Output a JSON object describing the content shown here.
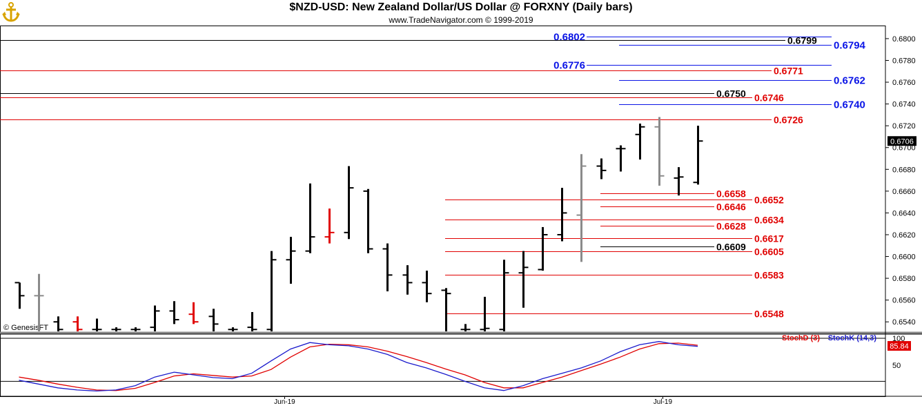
{
  "title": "$NZD-USD:  New Zealand Dollar/US Dollar @ FORXNY  (Daily bars)",
  "subtitle": "www.TradeNavigator.com © 1999-2019",
  "watermark": "© GenesisFT",
  "colors": {
    "black": "#000000",
    "red": "#e00000",
    "blue": "#0a14e6",
    "gray": "#8a8a8a",
    "stoch_d": "#e00000",
    "stoch_k": "#1a1acc"
  },
  "chart_data": {
    "type": "bar",
    "title": "$NZD-USD:  New Zealand Dollar/US Dollar @ FORXNY  (Daily bars)",
    "price_axis": {
      "ylim": [
        0.653,
        0.6812
      ],
      "ticks": [
        "0.6540",
        "0.6560",
        "0.6580",
        "0.6600",
        "0.6620",
        "0.6640",
        "0.6660",
        "0.6680",
        "0.6700",
        "0.6720",
        "0.6740",
        "0.6760",
        "0.6780",
        "0.6800"
      ]
    },
    "last_price": "0.6706",
    "x_labels": [
      {
        "label": "Jun-19",
        "index": 13.7
      },
      {
        "label": "Jul-19",
        "index": 33.2
      }
    ],
    "ohlc": [
      {
        "o": 0.6576,
        "h": 0.6576,
        "l": 0.6552,
        "c": 0.6564,
        "color": "black"
      },
      {
        "o": 0.6564,
        "h": 0.6584,
        "l": 0.6525,
        "c": 0.6564,
        "color": "gray"
      },
      {
        "o": 0.654,
        "h": 0.6545,
        "l": 0.6525,
        "c": 0.6533,
        "color": "black"
      },
      {
        "o": 0.654,
        "h": 0.6545,
        "l": 0.6525,
        "c": 0.6533,
        "color": "red"
      },
      {
        "o": 0.6533,
        "h": 0.6543,
        "l": 0.6525,
        "c": 0.6533,
        "color": "black"
      },
      {
        "o": 0.6533,
        "h": 0.6535,
        "l": 0.6525,
        "c": 0.6533,
        "color": "black"
      },
      {
        "o": 0.6533,
        "h": 0.6535,
        "l": 0.6525,
        "c": 0.6533,
        "color": "black"
      },
      {
        "o": 0.6535,
        "h": 0.6555,
        "l": 0.6525,
        "c": 0.655,
        "color": "black"
      },
      {
        "o": 0.655,
        "h": 0.6559,
        "l": 0.6538,
        "c": 0.6542,
        "color": "black"
      },
      {
        "o": 0.6547,
        "h": 0.6558,
        "l": 0.6538,
        "c": 0.654,
        "color": "red"
      },
      {
        "o": 0.6545,
        "h": 0.6552,
        "l": 0.6525,
        "c": 0.6538,
        "color": "black"
      },
      {
        "o": 0.6533,
        "h": 0.6535,
        "l": 0.6525,
        "c": 0.6533,
        "color": "black"
      },
      {
        "o": 0.6535,
        "h": 0.6549,
        "l": 0.6525,
        "c": 0.6533,
        "color": "black"
      },
      {
        "o": 0.6533,
        "h": 0.6605,
        "l": 0.6525,
        "c": 0.6597,
        "color": "black"
      },
      {
        "o": 0.6597,
        "h": 0.6618,
        "l": 0.6575,
        "c": 0.6605,
        "color": "black"
      },
      {
        "o": 0.6605,
        "h": 0.6667,
        "l": 0.6603,
        "c": 0.6618,
        "color": "black"
      },
      {
        "o": 0.6618,
        "h": 0.6644,
        "l": 0.6612,
        "c": 0.6622,
        "color": "red"
      },
      {
        "o": 0.6622,
        "h": 0.6683,
        "l": 0.6616,
        "c": 0.6663,
        "color": "black"
      },
      {
        "o": 0.666,
        "h": 0.6662,
        "l": 0.6603,
        "c": 0.6607,
        "color": "black"
      },
      {
        "o": 0.6607,
        "h": 0.6612,
        "l": 0.6568,
        "c": 0.6583,
        "color": "black"
      },
      {
        "o": 0.6583,
        "h": 0.6592,
        "l": 0.6565,
        "c": 0.6576,
        "color": "black"
      },
      {
        "o": 0.6576,
        "h": 0.6587,
        "l": 0.6558,
        "c": 0.6566,
        "color": "black"
      },
      {
        "o": 0.6569,
        "h": 0.6571,
        "l": 0.6525,
        "c": 0.6566,
        "color": "black"
      },
      {
        "o": 0.6533,
        "h": 0.6538,
        "l": 0.6525,
        "c": 0.6533,
        "color": "black"
      },
      {
        "o": 0.6533,
        "h": 0.6563,
        "l": 0.6525,
        "c": 0.6534,
        "color": "black"
      },
      {
        "o": 0.6533,
        "h": 0.6597,
        "l": 0.6525,
        "c": 0.6585,
        "color": "black"
      },
      {
        "o": 0.6585,
        "h": 0.6605,
        "l": 0.6553,
        "c": 0.659,
        "color": "black"
      },
      {
        "o": 0.6588,
        "h": 0.6627,
        "l": 0.6587,
        "c": 0.662,
        "color": "black"
      },
      {
        "o": 0.662,
        "h": 0.6663,
        "l": 0.6614,
        "c": 0.664,
        "color": "black"
      },
      {
        "o": 0.6638,
        "h": 0.6694,
        "l": 0.6595,
        "c": 0.6683,
        "color": "gray"
      },
      {
        "o": 0.6683,
        "h": 0.669,
        "l": 0.6671,
        "c": 0.6679,
        "color": "black"
      },
      {
        "o": 0.6699,
        "h": 0.6702,
        "l": 0.6678,
        "c": 0.6699,
        "color": "black"
      },
      {
        "o": 0.6712,
        "h": 0.6722,
        "l": 0.6689,
        "c": 0.6719,
        "color": "black"
      },
      {
        "o": 0.6719,
        "h": 0.6728,
        "l": 0.6665,
        "c": 0.6674,
        "color": "gray"
      },
      {
        "o": 0.6672,
        "h": 0.6682,
        "l": 0.6656,
        "c": 0.6673,
        "color": "black"
      },
      {
        "o": 0.6668,
        "h": 0.672,
        "l": 0.6666,
        "c": 0.6706,
        "color": "black"
      }
    ],
    "levels": [
      {
        "value": "0.6802",
        "price": 0.6802,
        "color": "blue",
        "side": "left",
        "from": 850,
        "to": 1205
      },
      {
        "value": "0.6799",
        "price": 0.6799,
        "color": "black",
        "side": "right",
        "from": 0,
        "to": 1138
      },
      {
        "value": "0.6794",
        "price": 0.6794,
        "color": "blue",
        "side": "right",
        "from": 897,
        "to": 1205
      },
      {
        "value": "0.6776",
        "price": 0.6776,
        "color": "blue",
        "side": "left",
        "from": 850,
        "to": 1205
      },
      {
        "value": "0.6771",
        "price": 0.6771,
        "color": "red",
        "side": "right",
        "from": 0,
        "to": 1118
      },
      {
        "value": "0.6762",
        "price": 0.6762,
        "color": "blue",
        "side": "right",
        "from": 897,
        "to": 1205
      },
      {
        "value": "0.6750",
        "price": 0.675,
        "color": "black",
        "side": "right",
        "from": 0,
        "to": 1035
      },
      {
        "value": "0.6746",
        "price": 0.6746,
        "color": "red",
        "side": "right",
        "from": 0,
        "to": 1090
      },
      {
        "value": "0.6740",
        "price": 0.674,
        "color": "blue",
        "side": "right",
        "from": 897,
        "to": 1205
      },
      {
        "value": "0.6726",
        "price": 0.6726,
        "color": "red",
        "side": "right",
        "from": 0,
        "to": 1118
      },
      {
        "value": "0.6658",
        "price": 0.6658,
        "color": "red",
        "side": "right",
        "from": 870,
        "to": 1035
      },
      {
        "value": "0.6652",
        "price": 0.6652,
        "color": "red",
        "side": "right",
        "from": 645,
        "to": 1090
      },
      {
        "value": "0.6646",
        "price": 0.6646,
        "color": "red",
        "side": "right",
        "from": 870,
        "to": 1035
      },
      {
        "value": "0.6634",
        "price": 0.6634,
        "color": "red",
        "side": "right",
        "from": 645,
        "to": 1090
      },
      {
        "value": "0.6628",
        "price": 0.6628,
        "color": "red",
        "side": "right",
        "from": 870,
        "to": 1035
      },
      {
        "value": "0.6617",
        "price": 0.6617,
        "color": "red",
        "side": "right",
        "from": 645,
        "to": 1090
      },
      {
        "value": "0.6609",
        "price": 0.6609,
        "color": "black",
        "side": "right",
        "from": 870,
        "to": 1035
      },
      {
        "value": "0.6605",
        "price": 0.6605,
        "color": "red",
        "side": "right",
        "from": 645,
        "to": 1090
      },
      {
        "value": "0.6583",
        "price": 0.6583,
        "color": "red",
        "side": "right",
        "from": 645,
        "to": 1090
      },
      {
        "value": "0.6548",
        "price": 0.6548,
        "color": "red",
        "side": "right",
        "from": 645,
        "to": 1090
      }
    ],
    "stochastic": {
      "ylim": [
        0,
        120
      ],
      "ticks": [
        "50",
        "100"
      ],
      "last_value": "85.84",
      "legend": [
        {
          "name": "StochD (3)",
          "color": "red"
        },
        {
          "name": "StochK (14,3)",
          "color": "blue"
        }
      ],
      "stoch_k": [
        22,
        15,
        8,
        4,
        2,
        4,
        12,
        28,
        37,
        32,
        27,
        25,
        35,
        58,
        80,
        92,
        88,
        86,
        80,
        70,
        55,
        45,
        33,
        20,
        8,
        3,
        12,
        25,
        35,
        45,
        58,
        75,
        88,
        94,
        88,
        85
      ],
      "stoch_d": [
        28,
        22,
        15,
        9,
        4,
        3,
        7,
        18,
        30,
        34,
        31,
        28,
        30,
        42,
        65,
        84,
        89,
        88,
        84,
        76,
        66,
        55,
        43,
        32,
        18,
        8,
        8,
        18,
        28,
        40,
        52,
        65,
        80,
        90,
        91,
        87
      ]
    }
  }
}
